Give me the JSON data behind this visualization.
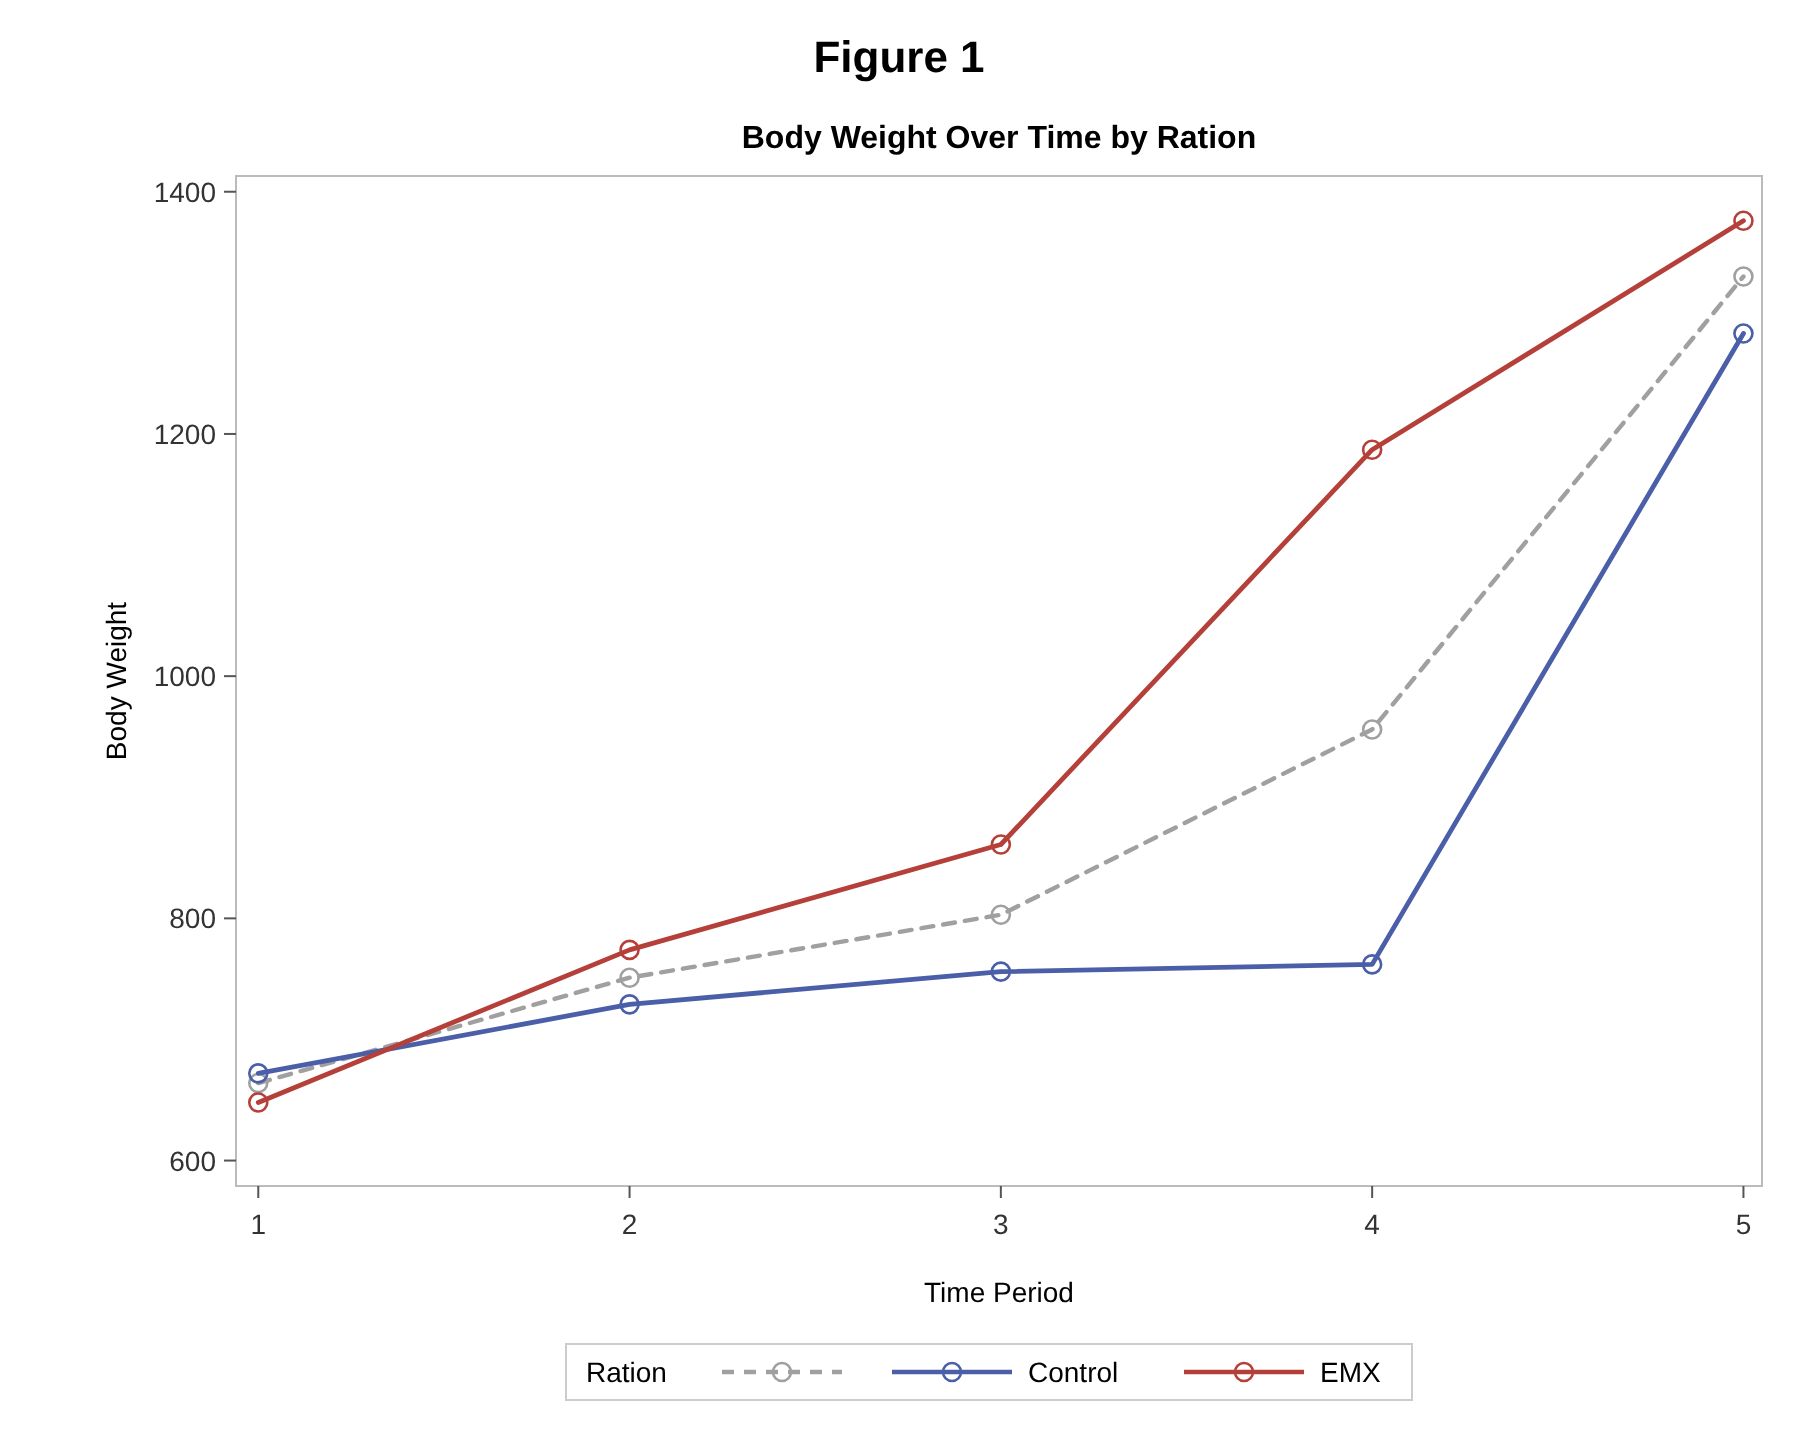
{
  "chart_data": {
    "type": "line",
    "title": "Figure 1",
    "subtitle": "Body Weight Over Time by Ration",
    "xlabel": "Time Period",
    "ylabel": "Body Weight",
    "legend_title": "Ration",
    "x": [
      1,
      2,
      3,
      4,
      5
    ],
    "series": [
      {
        "color": "#a0a0a0",
        "line_style": "dashed",
        "values": [
          664,
          751,
          803,
          956,
          1330
        ]
      },
      {
        "name": "Control",
        "color": "#4a5fa8",
        "line_style": "solid",
        "values": [
          672,
          729,
          756,
          762,
          1283
        ]
      },
      {
        "name": "EMX",
        "color": "#b5403a",
        "line_style": "solid",
        "values": [
          648,
          774,
          861,
          1187,
          1376
        ]
      }
    ],
    "xlim": [
      0.94,
      5.05
    ],
    "xticks": [
      1,
      2,
      3,
      4,
      5
    ],
    "ylim": [
      579,
      1413
    ],
    "yticks": [
      600,
      800,
      1000,
      1200,
      1400
    ],
    "grid": false,
    "legend": "bottom",
    "marker": "circle"
  }
}
